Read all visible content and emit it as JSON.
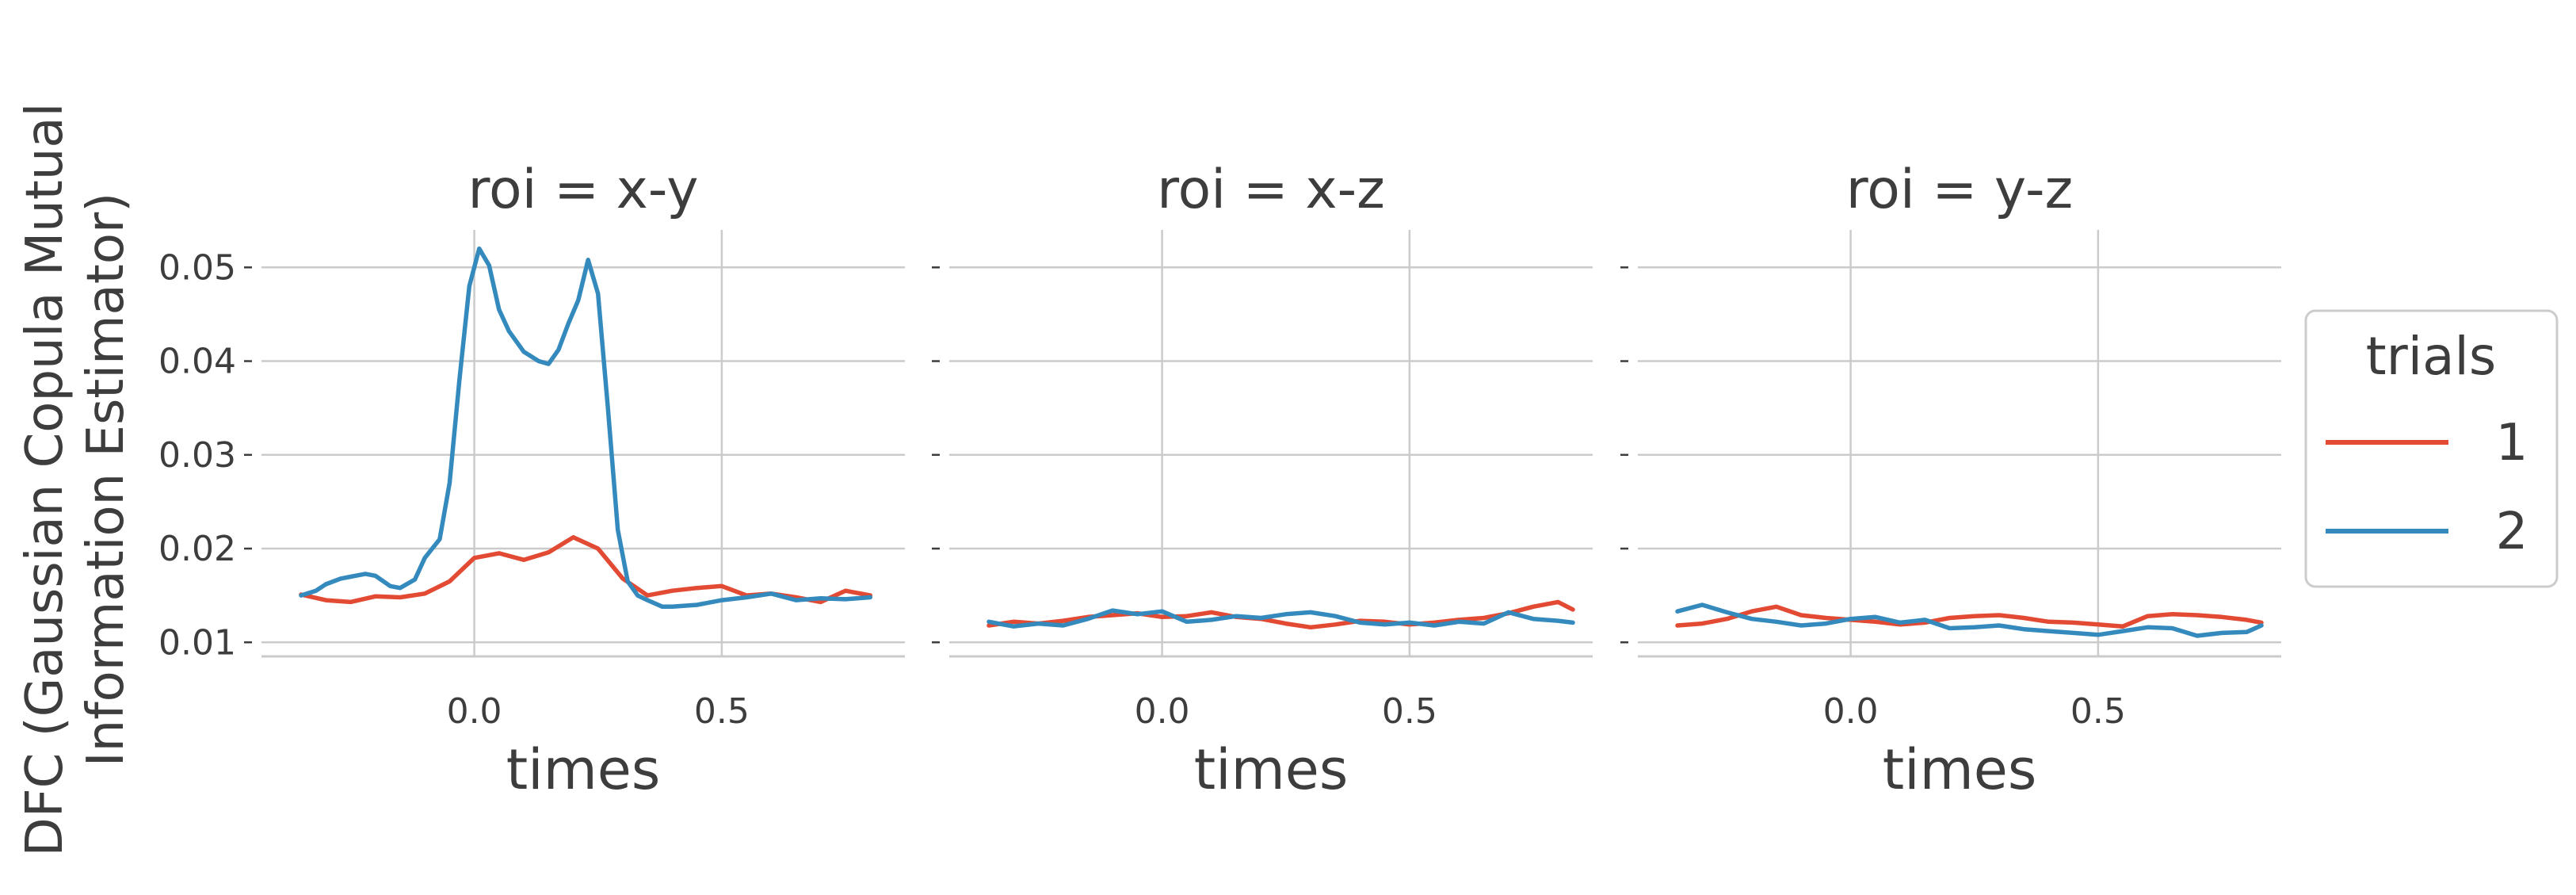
{
  "chart_data": {
    "type": "line",
    "ylabel": "DFC (Gaussian Copula Mutual\nInformation Estimator)",
    "xlabel": "times",
    "xlim": [
      -0.43,
      0.87
    ],
    "ylim": [
      0.0085,
      0.054
    ],
    "xticks": [
      0.0,
      0.5
    ],
    "xtick_labels": [
      "0.0",
      "0.5"
    ],
    "yticks": [
      0.01,
      0.02,
      0.03,
      0.04,
      0.05
    ],
    "ytick_labels": [
      "0.01",
      "0.02",
      "0.03",
      "0.04",
      "0.05"
    ],
    "grid": true,
    "legend": {
      "title": "trials",
      "placement": "right",
      "entries": [
        {
          "label": "1",
          "color": "#e24a33"
        },
        {
          "label": "2",
          "color": "#348abd"
        }
      ]
    },
    "panels": [
      {
        "title": "roi = x-y",
        "series": [
          {
            "name": "1",
            "color": "#e24a33",
            "x": [
              -0.35,
              -0.3,
              -0.25,
              -0.2,
              -0.15,
              -0.1,
              -0.05,
              0.0,
              0.05,
              0.1,
              0.15,
              0.2,
              0.25,
              0.3,
              0.35,
              0.4,
              0.45,
              0.5,
              0.55,
              0.6,
              0.65,
              0.7,
              0.75,
              0.8
            ],
            "y": [
              0.0151,
              0.0145,
              0.0143,
              0.0149,
              0.0148,
              0.0152,
              0.0165,
              0.019,
              0.0195,
              0.0188,
              0.0196,
              0.0212,
              0.02,
              0.0168,
              0.015,
              0.0155,
              0.0158,
              0.016,
              0.015,
              0.0152,
              0.0148,
              0.0143,
              0.0155,
              0.015
            ]
          },
          {
            "name": "2",
            "color": "#348abd",
            "x": [
              -0.35,
              -0.32,
              -0.3,
              -0.27,
              -0.25,
              -0.22,
              -0.2,
              -0.17,
              -0.15,
              -0.12,
              -0.1,
              -0.07,
              -0.05,
              -0.03,
              -0.01,
              0.01,
              0.03,
              0.05,
              0.07,
              0.1,
              0.13,
              0.15,
              0.17,
              0.19,
              0.21,
              0.23,
              0.25,
              0.27,
              0.29,
              0.31,
              0.33,
              0.35,
              0.38,
              0.4,
              0.45,
              0.5,
              0.55,
              0.6,
              0.65,
              0.7,
              0.75,
              0.8
            ],
            "y": [
              0.015,
              0.0155,
              0.0162,
              0.0168,
              0.017,
              0.0173,
              0.0171,
              0.016,
              0.0158,
              0.0167,
              0.019,
              0.021,
              0.027,
              0.038,
              0.048,
              0.052,
              0.0502,
              0.0455,
              0.0432,
              0.041,
              0.04,
              0.0397,
              0.0412,
              0.044,
              0.0465,
              0.0508,
              0.0472,
              0.035,
              0.022,
              0.0165,
              0.015,
              0.0145,
              0.0138,
              0.0138,
              0.014,
              0.0145,
              0.0148,
              0.0152,
              0.0145,
              0.0147,
              0.0146,
              0.0148
            ]
          }
        ]
      },
      {
        "title": "roi = x-z",
        "series": [
          {
            "name": "1",
            "color": "#e24a33",
            "x": [
              -0.35,
              -0.3,
              -0.25,
              -0.2,
              -0.15,
              -0.1,
              -0.05,
              0.0,
              0.05,
              0.1,
              0.15,
              0.2,
              0.25,
              0.3,
              0.35,
              0.4,
              0.45,
              0.5,
              0.55,
              0.6,
              0.65,
              0.7,
              0.75,
              0.8,
              0.83
            ],
            "y": [
              0.0118,
              0.0122,
              0.012,
              0.0123,
              0.0127,
              0.0129,
              0.0131,
              0.0127,
              0.0128,
              0.0132,
              0.0127,
              0.0125,
              0.012,
              0.0116,
              0.0119,
              0.0123,
              0.0122,
              0.0119,
              0.0121,
              0.0124,
              0.0126,
              0.0131,
              0.0138,
              0.0143,
              0.0135
            ]
          },
          {
            "name": "2",
            "color": "#348abd",
            "x": [
              -0.35,
              -0.3,
              -0.25,
              -0.2,
              -0.15,
              -0.1,
              -0.05,
              0.0,
              0.05,
              0.1,
              0.15,
              0.2,
              0.25,
              0.3,
              0.35,
              0.4,
              0.45,
              0.5,
              0.55,
              0.6,
              0.65,
              0.7,
              0.75,
              0.8,
              0.83
            ],
            "y": [
              0.0122,
              0.0117,
              0.012,
              0.0118,
              0.0125,
              0.0134,
              0.013,
              0.0133,
              0.0122,
              0.0124,
              0.0128,
              0.0126,
              0.013,
              0.0132,
              0.0128,
              0.0121,
              0.0119,
              0.0121,
              0.0118,
              0.0122,
              0.012,
              0.0132,
              0.0125,
              0.0123,
              0.0121
            ]
          }
        ]
      },
      {
        "title": "roi = y-z",
        "series": [
          {
            "name": "1",
            "color": "#e24a33",
            "x": [
              -0.35,
              -0.3,
              -0.25,
              -0.2,
              -0.15,
              -0.1,
              -0.05,
              0.0,
              0.05,
              0.1,
              0.15,
              0.2,
              0.25,
              0.3,
              0.35,
              0.4,
              0.45,
              0.5,
              0.55,
              0.6,
              0.65,
              0.7,
              0.75,
              0.8,
              0.83
            ],
            "y": [
              0.0118,
              0.012,
              0.0125,
              0.0133,
              0.0138,
              0.0129,
              0.0126,
              0.0124,
              0.0122,
              0.0119,
              0.0121,
              0.0126,
              0.0128,
              0.0129,
              0.0126,
              0.0122,
              0.0121,
              0.0119,
              0.0117,
              0.0128,
              0.013,
              0.0129,
              0.0127,
              0.0124,
              0.0121
            ]
          },
          {
            "name": "2",
            "color": "#348abd",
            "x": [
              -0.35,
              -0.3,
              -0.25,
              -0.2,
              -0.15,
              -0.1,
              -0.05,
              0.0,
              0.05,
              0.1,
              0.15,
              0.2,
              0.25,
              0.3,
              0.35,
              0.4,
              0.45,
              0.5,
              0.55,
              0.6,
              0.65,
              0.7,
              0.75,
              0.8,
              0.83
            ],
            "y": [
              0.0133,
              0.014,
              0.0132,
              0.0125,
              0.0122,
              0.0118,
              0.012,
              0.0125,
              0.0127,
              0.0121,
              0.0124,
              0.0115,
              0.0116,
              0.0118,
              0.0114,
              0.0112,
              0.011,
              0.0108,
              0.0112,
              0.0116,
              0.0115,
              0.0107,
              0.011,
              0.0111,
              0.0118
            ]
          }
        ]
      }
    ]
  }
}
